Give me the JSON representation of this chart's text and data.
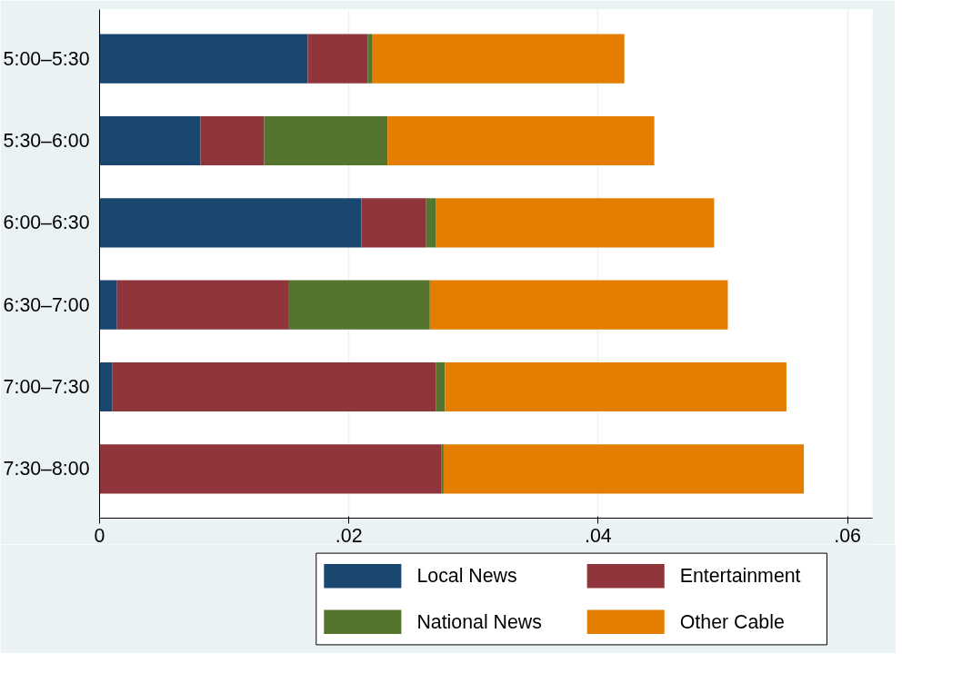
{
  "chart_data": {
    "type": "bar",
    "orientation": "horizontal",
    "stacked": true,
    "categories": [
      "5:00–5:30",
      "5:30–6:00",
      "6:00–6:30",
      "6:30–7:00",
      "7:00–7:30",
      "7:30–8:00"
    ],
    "series": [
      {
        "name": "Local News",
        "color": "#1a476f",
        "values": [
          0.0167,
          0.0081,
          0.021,
          0.0014,
          0.001,
          0
        ]
      },
      {
        "name": "Entertainment",
        "color": "#90353b",
        "values": [
          0.0048,
          0.0051,
          0.0052,
          0.0138,
          0.026,
          0.0274
        ]
      },
      {
        "name": "National News",
        "color": "#55752f",
        "values": [
          0.0004,
          0.0099,
          0.0008,
          0.0113,
          0.0007,
          0.0002
        ]
      },
      {
        "name": "Other Cable",
        "color": "#e37e00",
        "values": [
          0.0202,
          0.0214,
          0.0223,
          0.0239,
          0.0274,
          0.0289
        ]
      }
    ],
    "xlim": [
      0,
      0.062
    ],
    "xticks": [
      0,
      {
        "value": 0.02,
        "label": ".02"
      },
      {
        "value": 0.04,
        "label": ".04"
      },
      {
        "value": 0.06,
        "label": ".06"
      }
    ],
    "grid": "x",
    "legend": "bottom"
  }
}
